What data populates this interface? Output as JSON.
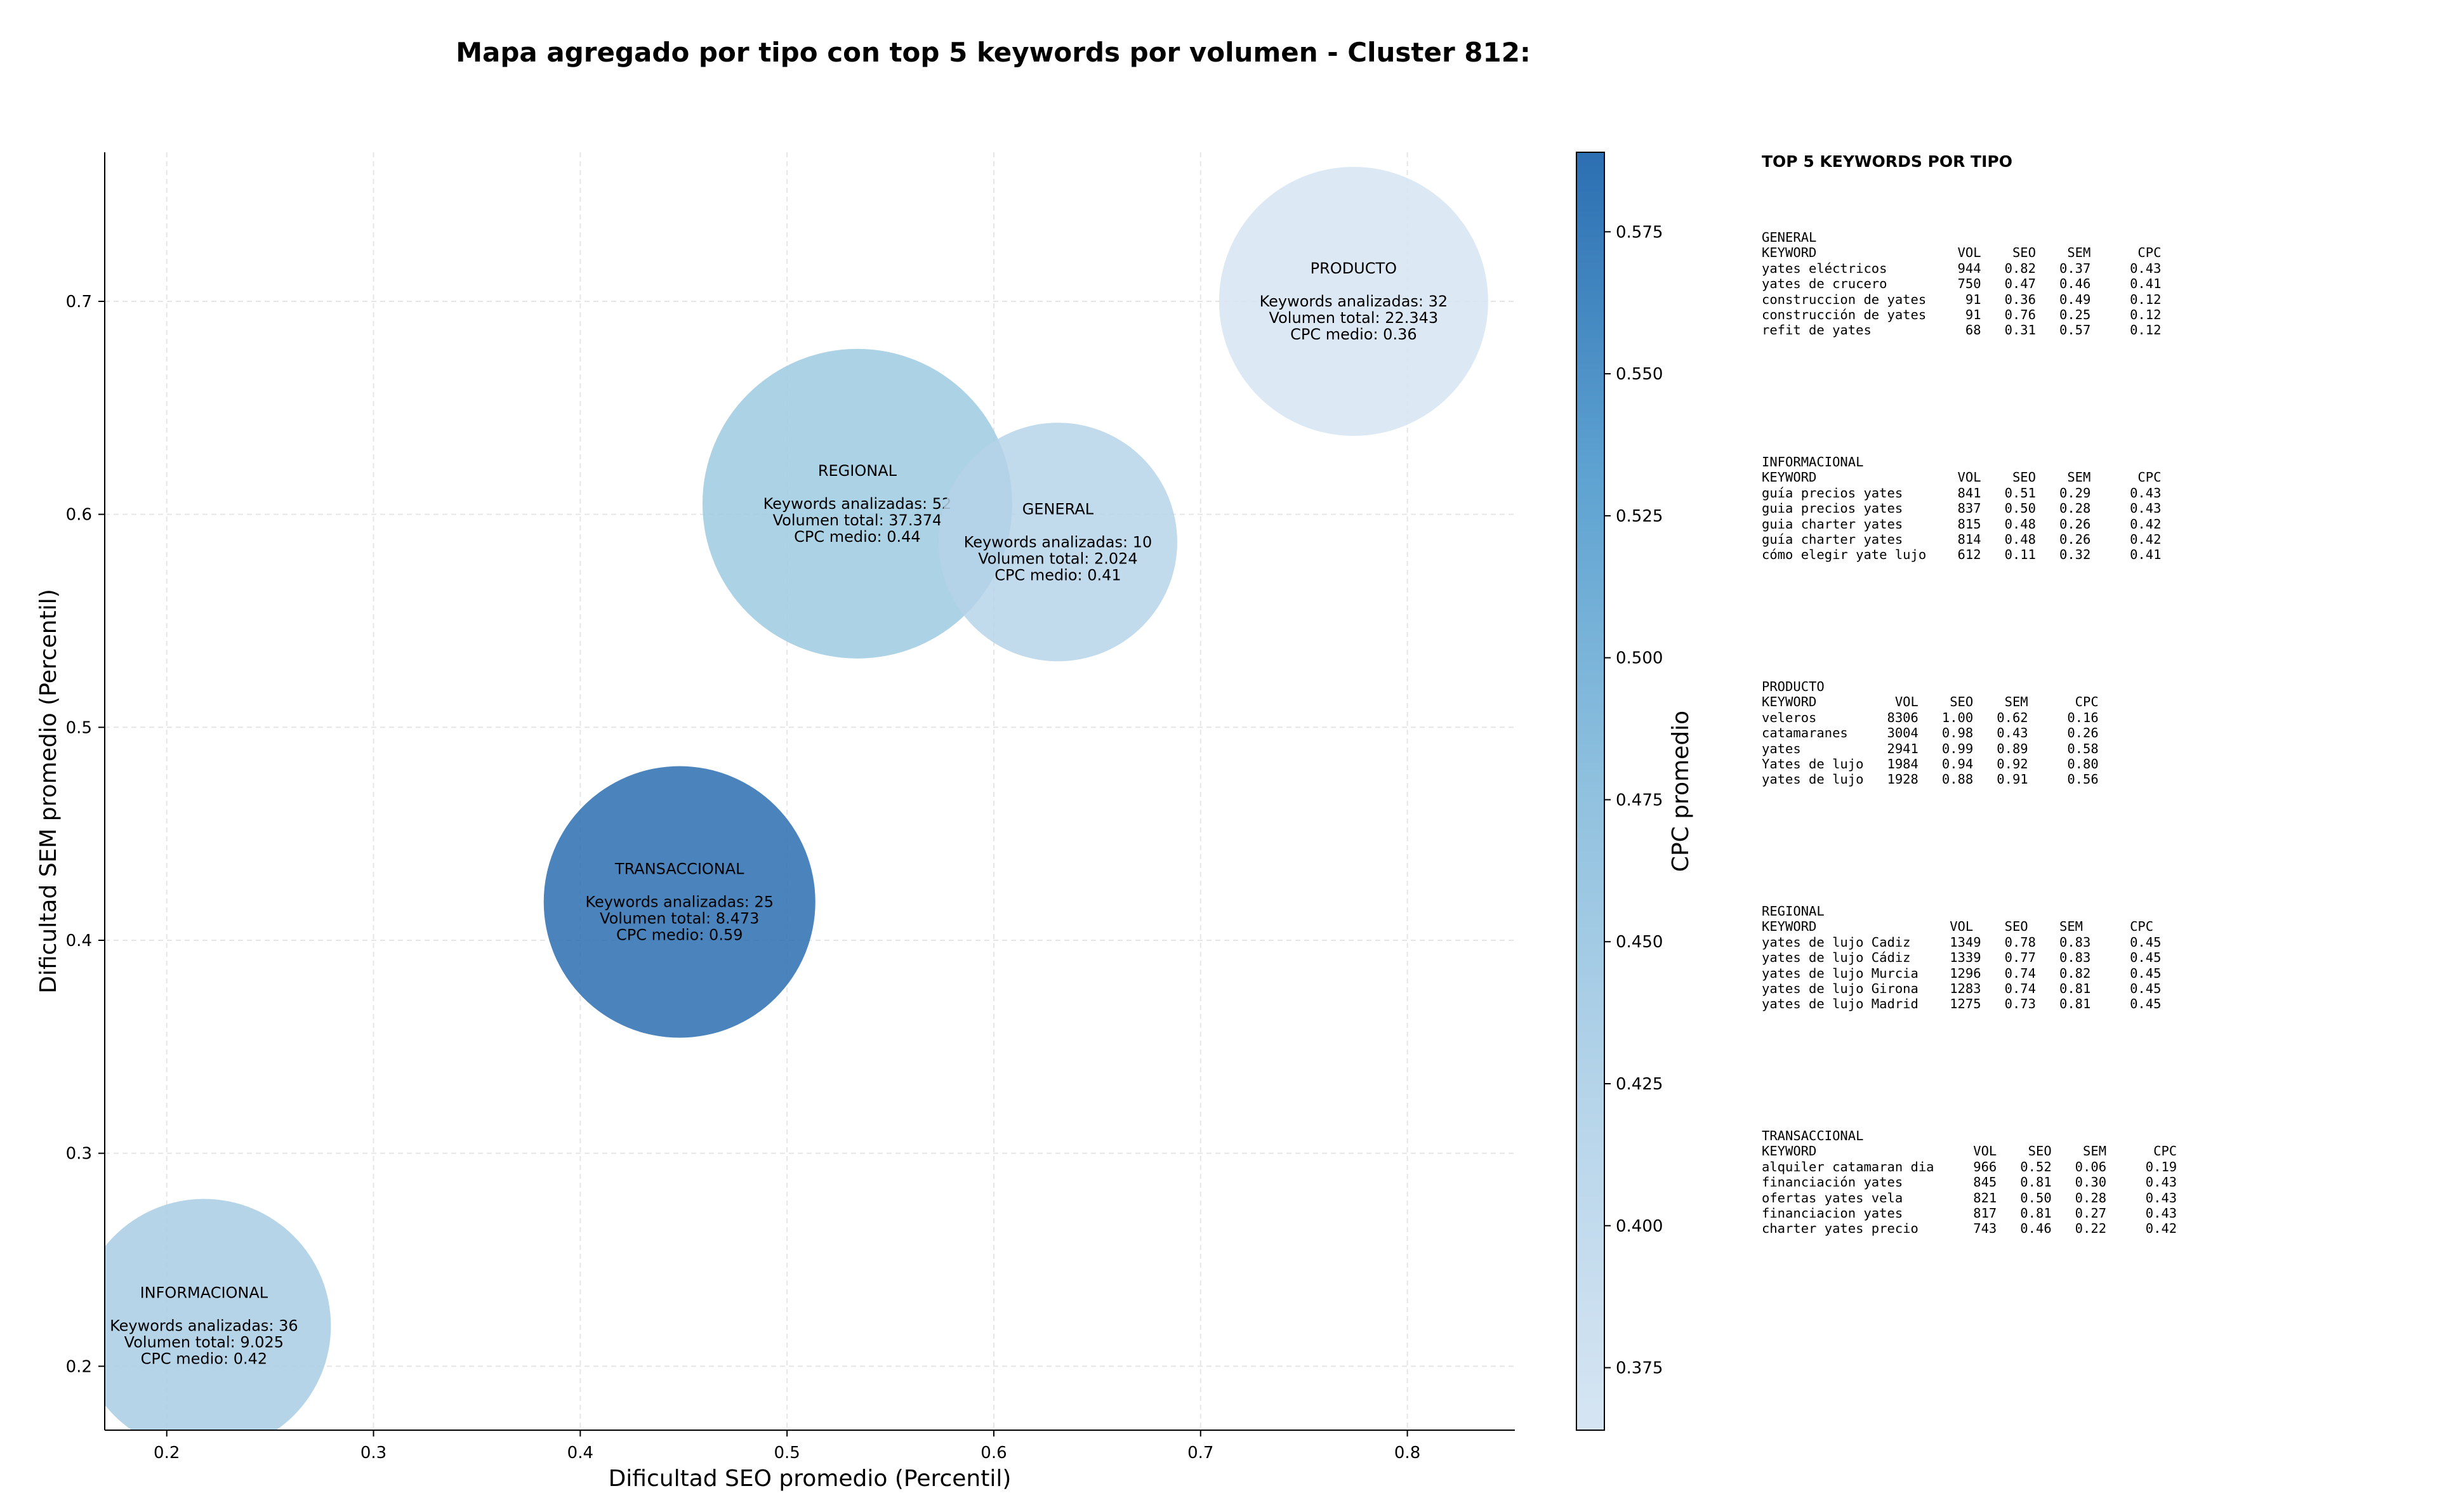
{
  "chart_data": {
    "type": "scatter",
    "title": "Mapa agregado por tipo con top 5 keywords por volumen - Cluster 812:",
    "xlabel": "Dificultad SEO promedio (Percentil)",
    "ylabel": "Dificultad SEM promedio (Percentil)",
    "xlim": [
      0.17,
      0.852
    ],
    "ylim": [
      0.17,
      0.77
    ],
    "xticks": [
      0.2,
      0.3,
      0.4,
      0.5,
      0.6,
      0.7,
      0.8
    ],
    "yticks": [
      0.2,
      0.3,
      0.4,
      0.5,
      0.6,
      0.7
    ],
    "grid": true,
    "colorbar": {
      "label": "CPC promedio",
      "min": 0.364,
      "max": 0.589,
      "ticks": [
        0.375,
        0.4,
        0.425,
        0.45,
        0.475,
        0.5,
        0.525,
        0.55,
        0.575
      ],
      "colormap": "Blues"
    },
    "points": [
      {
        "label": "PRODUCTO",
        "x": 0.774,
        "y": 0.7,
        "keywords": 32,
        "volume": 22343,
        "cpc": 0.36,
        "lines": [
          "PRODUCTO",
          "",
          "Keywords analizadas: 32",
          "Volumen total: 22.343",
          "CPC medio: 0.36"
        ]
      },
      {
        "label": "REGIONAL",
        "x": 0.534,
        "y": 0.605,
        "keywords": 52,
        "volume": 37374,
        "cpc": 0.44,
        "lines": [
          "REGIONAL",
          "",
          "Keywords analizadas: 52",
          "Volumen total: 37.374",
          "CPC medio: 0.44"
        ]
      },
      {
        "label": "GENERAL",
        "x": 0.631,
        "y": 0.587,
        "keywords": 10,
        "volume": 2024,
        "cpc": 0.41,
        "lines": [
          "GENERAL",
          "",
          "Keywords analizadas: 10",
          "Volumen total: 2.024",
          "CPC medio: 0.41"
        ]
      },
      {
        "label": "TRANSACCIONAL",
        "x": 0.448,
        "y": 0.418,
        "keywords": 25,
        "volume": 8473,
        "cpc": 0.59,
        "lines": [
          "TRANSACCIONAL",
          "",
          "Keywords analizadas: 25",
          "Volumen total: 8.473",
          "CPC medio: 0.59"
        ]
      },
      {
        "label": "INFORMACIONAL",
        "x": 0.218,
        "y": 0.219,
        "keywords": 36,
        "volume": 9025,
        "cpc": 0.42,
        "lines": [
          "INFORMACIONAL",
          "",
          "Keywords analizadas: 36",
          "Volumen total: 9.025",
          "CPC medio: 0.42"
        ]
      }
    ],
    "bubble_colors": {
      "PRODUCTO": "#d6e5f3",
      "REGIONAL": "#9ecae1",
      "GENERAL": "#b6d4e9",
      "TRANSACCIONAL": "#2c6fb2",
      "INFORMACIONAL": "#a9cde4"
    }
  },
  "side_panel": {
    "title": "TOP 5 KEYWORDS POR TIPO",
    "blocks": [
      {
        "lines": [
          "GENERAL",
          "KEYWORD                  VOL    SEO    SEM      CPC",
          "yates eléctricos         944   0.82   0.37     0.43",
          "yates de crucero         750   0.47   0.46     0.41",
          "construccion de yates     91   0.36   0.49     0.12",
          "construcción de yates     91   0.76   0.25     0.12",
          "refit de yates            68   0.31   0.57     0.12"
        ]
      },
      {
        "lines": [
          "INFORMACIONAL",
          "KEYWORD                  VOL    SEO    SEM      CPC",
          "guía precios yates       841   0.51   0.29     0.43",
          "guia precios yates       837   0.50   0.28     0.43",
          "guia charter yates       815   0.48   0.26     0.42",
          "guía charter yates       814   0.48   0.26     0.42",
          "cómo elegir yate lujo    612   0.11   0.32     0.41"
        ]
      },
      {
        "lines": [
          "PRODUCTO",
          "KEYWORD          VOL    SEO    SEM      CPC",
          "veleros         8306   1.00   0.62     0.16",
          "catamaranes     3004   0.98   0.43     0.26",
          "yates           2941   0.99   0.89     0.58",
          "Yates de lujo   1984   0.94   0.92     0.80",
          "yates de lujo   1928   0.88   0.91     0.56"
        ]
      },
      {
        "lines": [
          "REGIONAL",
          "KEYWORD                 VOL    SEO    SEM      CPC",
          "yates de lujo Cadiz     1349   0.78   0.83     0.45",
          "yates de lujo Cádiz     1339   0.77   0.83     0.45",
          "yates de lujo Murcia    1296   0.74   0.82     0.45",
          "yates de lujo Girona    1283   0.74   0.81     0.45",
          "yates de lujo Madrid    1275   0.73   0.81     0.45"
        ]
      },
      {
        "lines": [
          "TRANSACCIONAL",
          "KEYWORD                    VOL    SEO    SEM      CPC",
          "alquiler catamaran dia     966   0.52   0.06     0.19",
          "financiación yates         845   0.81   0.30     0.43",
          "ofertas yates vela         821   0.50   0.28     0.43",
          "financiacion yates         817   0.81   0.27     0.43",
          "charter yates precio       743   0.46   0.22     0.42"
        ]
      }
    ]
  }
}
